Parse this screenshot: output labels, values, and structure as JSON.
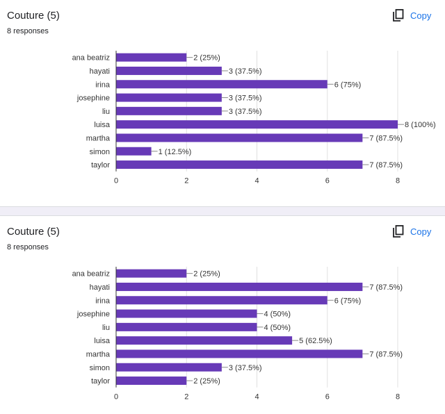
{
  "cards": [
    {
      "title": "Couture (5)",
      "responses": "8 responses",
      "copy_label": "Copy"
    },
    {
      "title": "Couture (5)",
      "responses": "8 responses",
      "copy_label": "Copy"
    }
  ],
  "colors": {
    "bar": "#673ab7",
    "accent": "#1a73e8",
    "grid": "#e0e0e0",
    "axis": "#333333"
  },
  "icons": {
    "copy": "copy-icon"
  },
  "chart_data": [
    {
      "type": "bar",
      "orientation": "horizontal",
      "categories": [
        "ana beatriz",
        "hayati",
        "irina",
        "josephine",
        "liu",
        "luisa",
        "martha",
        "simon",
        "taylor"
      ],
      "values": [
        2,
        3,
        6,
        3,
        3,
        8,
        7,
        1,
        7
      ],
      "labels": [
        "2 (25%)",
        "3 (37.5%)",
        "6 (75%)",
        "3 (37.5%)",
        "3 (37.5%)",
        "8 (100%)",
        "7 (87.5%)",
        "1 (12.5%)",
        "7 (87.5%)"
      ],
      "xticks": [
        "0",
        "2",
        "4",
        "6",
        "8"
      ],
      "xlim": [
        0,
        8
      ],
      "grid": true
    },
    {
      "type": "bar",
      "orientation": "horizontal",
      "categories": [
        "ana beatriz",
        "hayati",
        "irina",
        "josephine",
        "liu",
        "luisa",
        "martha",
        "simon",
        "taylor"
      ],
      "values": [
        2,
        7,
        6,
        4,
        4,
        5,
        7,
        3,
        2
      ],
      "labels": [
        "2 (25%)",
        "7 (87.5%)",
        "6 (75%)",
        "4 (50%)",
        "4 (50%)",
        "5 (62.5%)",
        "7 (87.5%)",
        "3 (37.5%)",
        "2 (25%)"
      ],
      "xticks": [
        "0",
        "2",
        "4",
        "6",
        "8"
      ],
      "xlim": [
        0,
        8
      ],
      "grid": true
    }
  ]
}
